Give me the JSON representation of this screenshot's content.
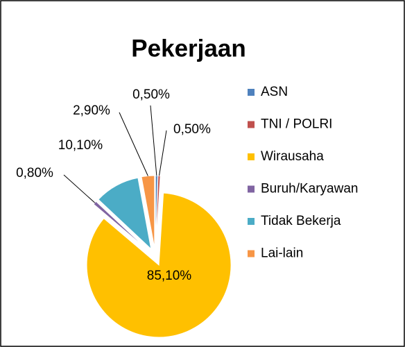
{
  "chart_data": {
    "type": "pie",
    "title": "Pekerjaan",
    "categories": [
      "ASN",
      "TNI / POLRI",
      "Wirausaha",
      "Buruh/Karyawan",
      "Tidak Bekerja",
      "Lai-lain"
    ],
    "values": [
      0.5,
      0.5,
      85.1,
      0.8,
      10.1,
      2.9
    ],
    "value_labels": [
      "0,50%",
      "0,50%",
      "85,10%",
      "0,80%",
      "10,10%",
      "2,90%"
    ],
    "colors": [
      "#4f81bd",
      "#c0504d",
      "#ffc000",
      "#8064a2",
      "#4bacc6",
      "#f79646"
    ],
    "legend": "right"
  }
}
